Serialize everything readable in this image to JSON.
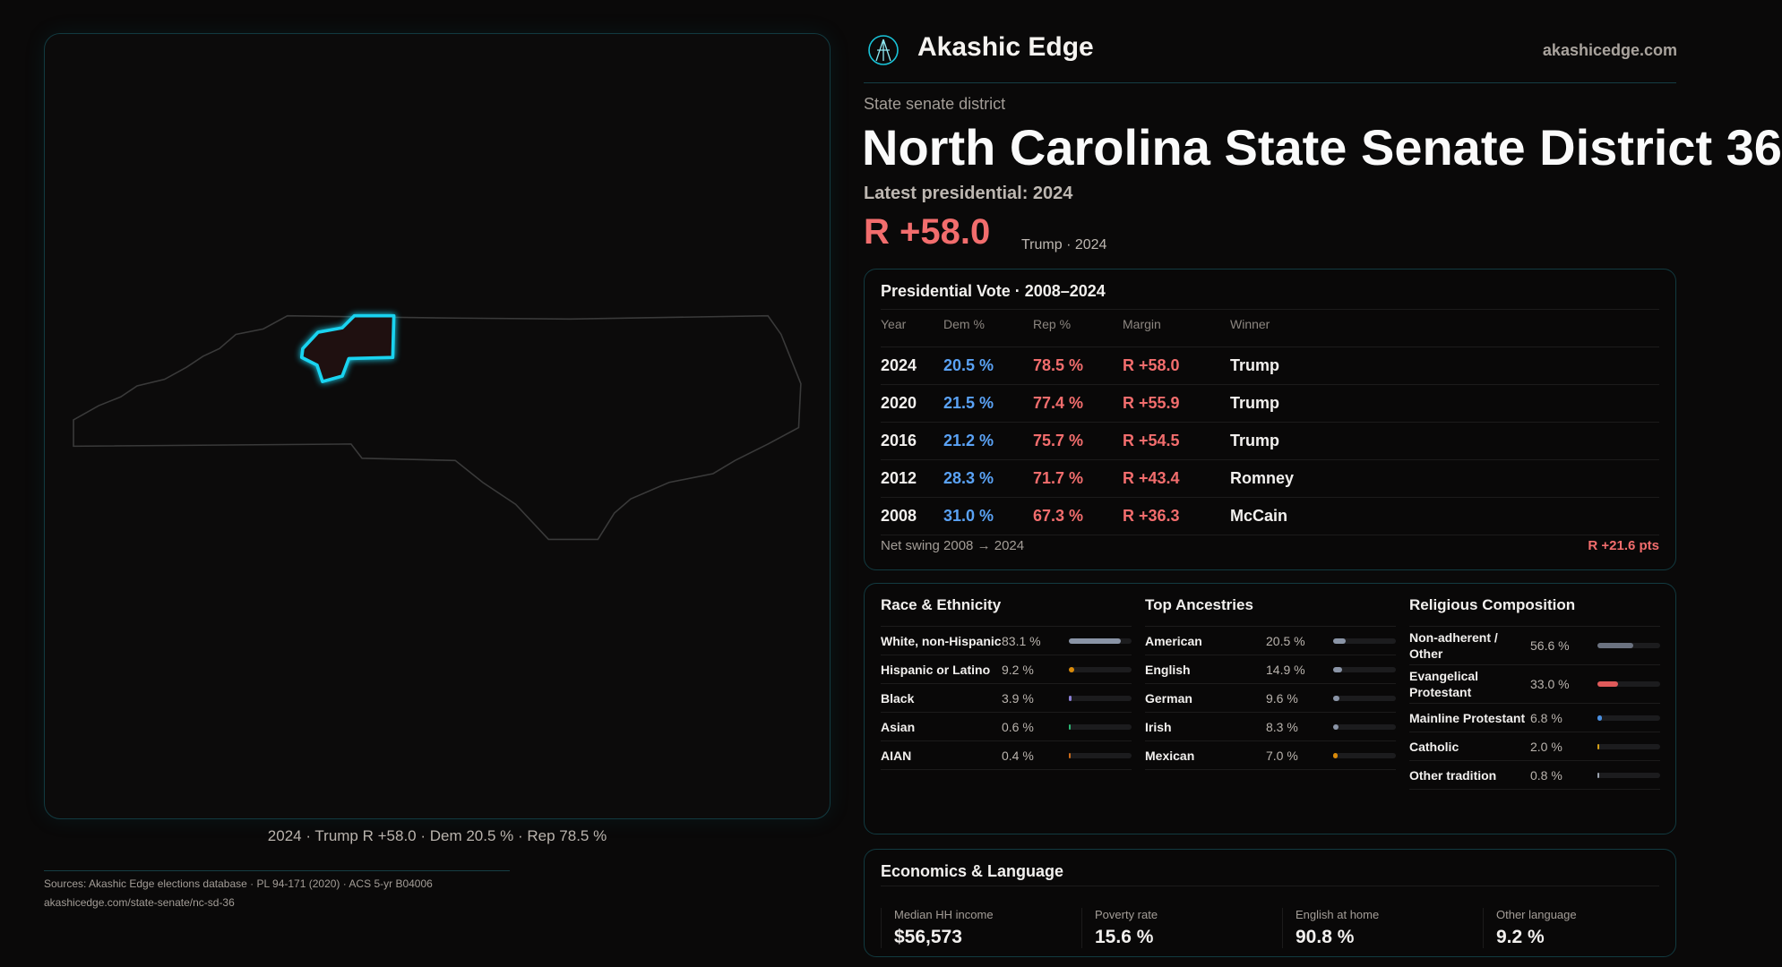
{
  "brand": {
    "name": "Akashic Edge",
    "site": "akashicedge.com"
  },
  "header": {
    "kicker": "State senate district",
    "title": "North Carolina State Senate District 36",
    "latest": "Latest presidential: 2024",
    "margin": "R +58.0",
    "margin_sub": "Trump · 2024"
  },
  "map": {
    "caption": "2024 · Trump R +58.0 · Dem 20.5 % · Rep 78.5 %",
    "highlight_color": "#19d3f0"
  },
  "presidential": {
    "title": "Presidential Vote · 2008–2024",
    "headers": [
      "Year",
      "Dem %",
      "Rep %",
      "Margin",
      "Winner"
    ],
    "rows": [
      [
        "2024",
        "20.5 %",
        "78.5 %",
        "R +58.0",
        "Trump"
      ],
      [
        "2020",
        "21.5 %",
        "77.4 %",
        "R +55.9",
        "Trump"
      ],
      [
        "2016",
        "21.2 %",
        "75.7 %",
        "R +54.5",
        "Trump"
      ],
      [
        "2012",
        "28.3 %",
        "71.7 %",
        "R +43.4",
        "Romney"
      ],
      [
        "2008",
        "31.0 %",
        "67.3 %",
        "R +36.3",
        "McCain"
      ]
    ],
    "swing_label": "Net swing 2008 → 2024",
    "swing_value": "R +21.6 pts"
  },
  "demographics": [
    {
      "title": "Race & Ethnicity",
      "items": [
        {
          "label": "White, non-Hispanic",
          "value": "83.1 %",
          "pct": 83.1,
          "color": "#8a94a6"
        },
        {
          "label": "Hispanic or Latino",
          "value": "9.2 %",
          "pct": 9.2,
          "color": "#d98a0a"
        },
        {
          "label": "Black",
          "value": "3.9 %",
          "pct": 3.9,
          "color": "#8b7fd6"
        },
        {
          "label": "Asian",
          "value": "0.6 %",
          "pct": 0.6,
          "color": "#2bb673"
        },
        {
          "label": "AIAN",
          "value": "0.4 %",
          "pct": 0.4,
          "color": "#c96a1a"
        }
      ]
    },
    {
      "title": "Top Ancestries",
      "items": [
        {
          "label": "American",
          "value": "20.5 %",
          "pct": 20.5,
          "color": "#8a94a6"
        },
        {
          "label": "English",
          "value": "14.9 %",
          "pct": 14.9,
          "color": "#8a94a6"
        },
        {
          "label": "German",
          "value": "9.6 %",
          "pct": 9.6,
          "color": "#8a94a6"
        },
        {
          "label": "Irish",
          "value": "8.3 %",
          "pct": 8.3,
          "color": "#8a94a6"
        },
        {
          "label": "Mexican",
          "value": "7.0 %",
          "pct": 7.0,
          "color": "#d98a0a"
        }
      ]
    },
    {
      "title": "Religious Composition",
      "items": [
        {
          "label": "Non-adherent / Other",
          "value": "56.6 %",
          "pct": 56.6,
          "color": "#6b7280"
        },
        {
          "label": "Evangelical Protestant",
          "value": "33.0 %",
          "pct": 33.0,
          "color": "#e05a5a"
        },
        {
          "label": "Mainline Protestant",
          "value": "6.8 %",
          "pct": 6.8,
          "color": "#4a8fe0"
        },
        {
          "label": "Catholic",
          "value": "2.0 %",
          "pct": 2.0,
          "color": "#d4a017"
        },
        {
          "label": "Other tradition",
          "value": "0.8 %",
          "pct": 0.8,
          "color": "#9ca3af"
        }
      ]
    }
  ],
  "economics": {
    "title": "Economics & Language",
    "stats": [
      {
        "label": "Median HH income",
        "value": "$56,573"
      },
      {
        "label": "Poverty rate",
        "value": "15.6 %"
      },
      {
        "label": "English at home",
        "value": "90.8 %"
      },
      {
        "label": "Other language",
        "value": "9.2 %"
      }
    ]
  },
  "sources": {
    "line1": "Sources: Akashic Edge elections database · PL 94-171 (2020) · ACS 5-yr B04006",
    "line2": "akashicedge.com/state-senate/nc-sd-36"
  }
}
